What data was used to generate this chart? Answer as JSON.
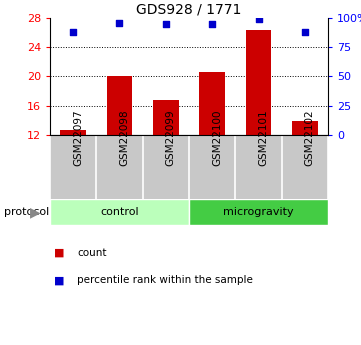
{
  "title": "GDS928 / 1771",
  "samples": [
    "GSM22097",
    "GSM22098",
    "GSM22099",
    "GSM22100",
    "GSM22101",
    "GSM22102"
  ],
  "counts": [
    12.7,
    20.1,
    16.7,
    20.6,
    26.3,
    13.9
  ],
  "percentiles": [
    88,
    96,
    95,
    95,
    99,
    88
  ],
  "ylim_left": [
    12,
    28
  ],
  "ylim_right": [
    0,
    100
  ],
  "yticks_left": [
    12,
    16,
    20,
    24,
    28
  ],
  "ytick_labels_right": [
    "0",
    "25",
    "50",
    "75",
    "100%"
  ],
  "bar_color": "#cc0000",
  "dot_color": "#0000cc",
  "groups": [
    {
      "label": "control",
      "indices": [
        0,
        1,
        2
      ],
      "color": "#bbffbb"
    },
    {
      "label": "microgravity",
      "indices": [
        3,
        4,
        5
      ],
      "color": "#44cc44"
    }
  ],
  "protocol_label": "protocol",
  "legend_count_label": "count",
  "legend_percentile_label": "percentile rank within the sample",
  "background_color": "#ffffff",
  "sample_label_bg": "#c8c8c8",
  "bar_width": 0.55
}
